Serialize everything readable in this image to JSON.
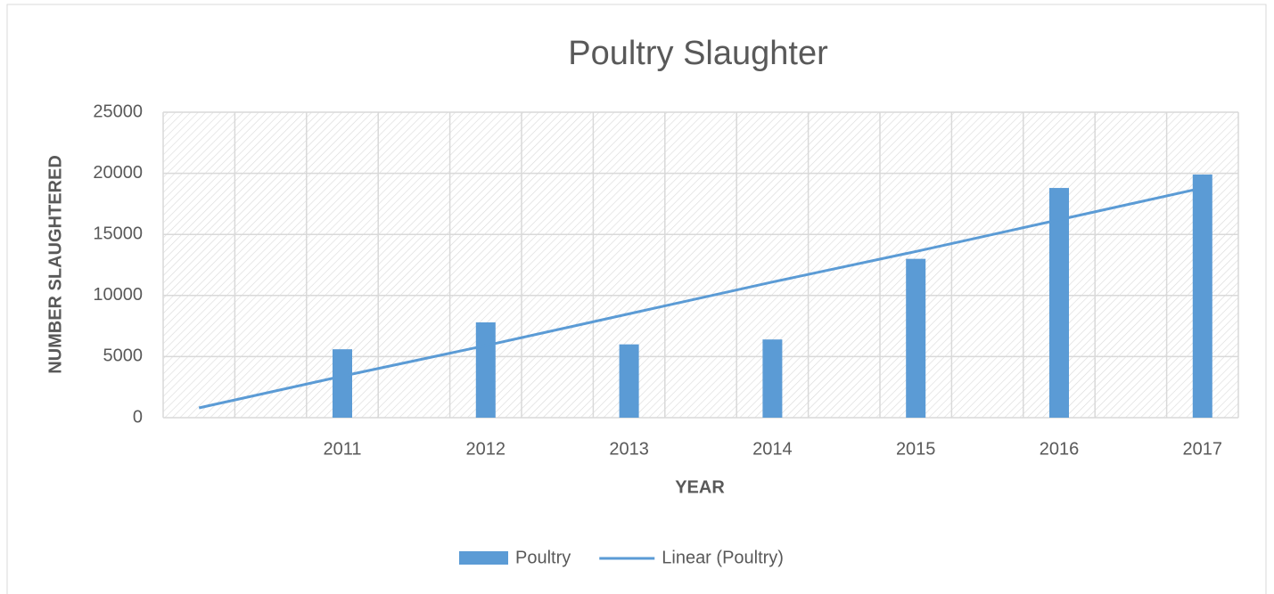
{
  "chart_data": {
    "type": "bar",
    "title": "Poultry Slaughter",
    "x_label": "YEAR",
    "y_label": "NUMBER SLAUGHTERED",
    "categories": [
      null,
      "2011",
      "2012",
      "2013",
      "2014",
      "2015",
      "2016",
      "2017"
    ],
    "series": [
      {
        "name": "Poultry",
        "type": "bar",
        "color": "#5b9bd5",
        "values": [
          null,
          5600,
          7800,
          6000,
          6400,
          13000,
          18800,
          19900
        ]
      },
      {
        "name": "Linear (Poultry)",
        "type": "line",
        "color": "#5b9bd5",
        "values": [
          800,
          3400,
          5900,
          8500,
          11100,
          13600,
          16200,
          18800
        ]
      }
    ],
    "ylim": [
      0,
      25000
    ],
    "yticks": [
      0,
      5000,
      10000,
      15000,
      20000,
      25000
    ],
    "grid": true,
    "legend": "bottom"
  }
}
